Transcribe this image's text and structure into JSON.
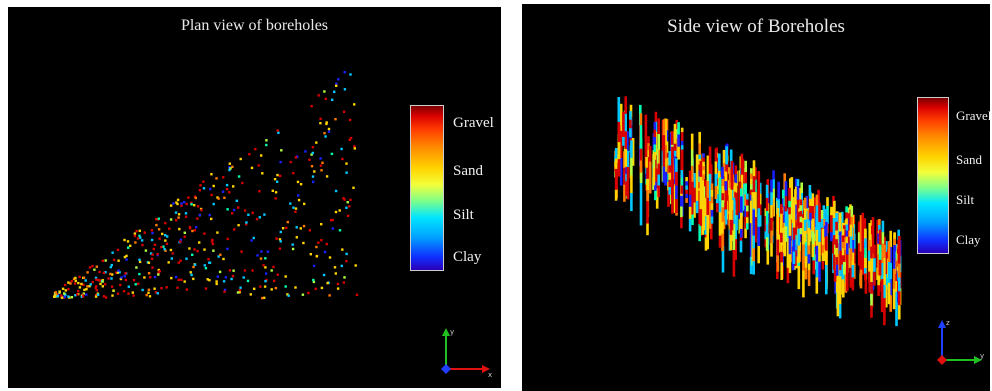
{
  "panels": [
    {
      "title": "Plan view of boreholes",
      "legend": [
        "Gravel",
        "Sand",
        "Silt",
        "Clay"
      ]
    },
    {
      "title": "Side view of Boreholes",
      "legend": [
        "Gravel",
        "Sand",
        "Silt",
        "Clay"
      ]
    }
  ],
  "colors": {
    "background": "#000000",
    "gravel": "#d80000",
    "sand": "#ffd400",
    "silt": "#00c8ff",
    "clay": "#1a20ff",
    "axis_x": "#e01010",
    "axis_y": "#20c020",
    "axis_z": "#2040ff"
  },
  "axes_glyphs": {
    "y": "y",
    "x": "x",
    "z": "z"
  }
}
